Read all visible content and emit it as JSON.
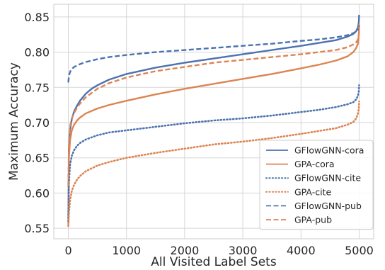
{
  "chart_data": {
    "type": "line",
    "xlabel": "All Visited Label Sets",
    "ylabel": "Maximum Accuracy",
    "xlim": [
      -250,
      5250
    ],
    "ylim": [
      0.535,
      0.868
    ],
    "xticks": [
      0,
      1000,
      2000,
      3000,
      4000,
      5000
    ],
    "xtick_labels": [
      "0",
      "1000",
      "2000",
      "3000",
      "4000",
      "5000"
    ],
    "yticks": [
      0.55,
      0.6,
      0.65,
      0.7,
      0.75,
      0.8,
      0.85
    ],
    "ytick_labels": [
      "0.55",
      "0.60",
      "0.65",
      "0.70",
      "0.75",
      "0.80",
      "0.85"
    ],
    "grid": true,
    "legend_position": "bottom-right",
    "series": [
      {
        "name": "GFlowGNN-cora",
        "color": "#4c72b0",
        "linestyle": "solid",
        "x": [
          0,
          10,
          30,
          60,
          100,
          150,
          200,
          300,
          400,
          500,
          700,
          1000,
          1500,
          2000,
          2500,
          3000,
          3500,
          4000,
          4300,
          4600,
          4800,
          4900,
          4950,
          4980,
          4995,
          5000
        ],
        "y": [
          0.565,
          0.66,
          0.69,
          0.705,
          0.716,
          0.724,
          0.731,
          0.741,
          0.748,
          0.753,
          0.761,
          0.769,
          0.778,
          0.785,
          0.791,
          0.797,
          0.803,
          0.809,
          0.813,
          0.817,
          0.822,
          0.826,
          0.83,
          0.835,
          0.843,
          0.853
        ]
      },
      {
        "name": "GPA-cora",
        "color": "#dd8452",
        "linestyle": "solid",
        "x": [
          0,
          10,
          30,
          60,
          100,
          150,
          200,
          300,
          500,
          700,
          1000,
          1500,
          2000,
          2500,
          3000,
          3500,
          4000,
          4300,
          4600,
          4800,
          4900,
          4950,
          4980,
          4995,
          5000
        ],
        "y": [
          0.555,
          0.65,
          0.675,
          0.689,
          0.697,
          0.703,
          0.707,
          0.713,
          0.72,
          0.725,
          0.731,
          0.74,
          0.748,
          0.755,
          0.762,
          0.769,
          0.777,
          0.782,
          0.788,
          0.794,
          0.8,
          0.806,
          0.812,
          0.825,
          0.84
        ]
      },
      {
        "name": "GFlowGNN-cite",
        "color": "#4c72b0",
        "linestyle": "dotted",
        "x": [
          0,
          10,
          30,
          60,
          100,
          150,
          200,
          300,
          500,
          700,
          1000,
          1500,
          2000,
          2500,
          3000,
          3500,
          4000,
          4300,
          4600,
          4800,
          4900,
          4950,
          4980,
          4995,
          5000
        ],
        "y": [
          0.56,
          0.615,
          0.64,
          0.653,
          0.661,
          0.667,
          0.671,
          0.676,
          0.682,
          0.686,
          0.689,
          0.694,
          0.699,
          0.703,
          0.706,
          0.71,
          0.715,
          0.718,
          0.722,
          0.726,
          0.729,
          0.733,
          0.738,
          0.745,
          0.753
        ]
      },
      {
        "name": "GPA-cite",
        "color": "#dd8452",
        "linestyle": "dotted",
        "x": [
          0,
          10,
          30,
          60,
          100,
          150,
          200,
          300,
          500,
          700,
          1000,
          1500,
          2000,
          2500,
          3000,
          3500,
          4000,
          4300,
          4600,
          4800,
          4900,
          4950,
          4980,
          4995,
          5000
        ],
        "y": [
          0.553,
          0.57,
          0.59,
          0.603,
          0.612,
          0.619,
          0.624,
          0.631,
          0.639,
          0.644,
          0.65,
          0.657,
          0.663,
          0.669,
          0.673,
          0.678,
          0.684,
          0.688,
          0.692,
          0.697,
          0.701,
          0.706,
          0.713,
          0.72,
          0.73
        ]
      },
      {
        "name": "GFlowGNN-pub",
        "color": "#4c72b0",
        "linestyle": "dashed",
        "x": [
          0,
          10,
          30,
          60,
          100,
          150,
          200,
          300,
          500,
          700,
          1000,
          1500,
          2000,
          2500,
          3000,
          3500,
          4000,
          4300,
          4600,
          4800,
          4900,
          4950,
          4980,
          4995,
          5000
        ],
        "y": [
          0.757,
          0.766,
          0.772,
          0.776,
          0.779,
          0.781,
          0.783,
          0.786,
          0.79,
          0.793,
          0.796,
          0.8,
          0.803,
          0.806,
          0.809,
          0.812,
          0.816,
          0.818,
          0.821,
          0.824,
          0.827,
          0.829,
          0.832,
          0.836,
          0.84
        ]
      },
      {
        "name": "GPA-pub",
        "color": "#dd8452",
        "linestyle": "dashed",
        "x": [
          0,
          10,
          30,
          60,
          100,
          150,
          200,
          300,
          500,
          700,
          1000,
          1500,
          2000,
          2500,
          3000,
          3500,
          4000,
          4300,
          4600,
          4800,
          4900,
          4950,
          4980,
          4995,
          5000
        ],
        "y": [
          0.61,
          0.67,
          0.695,
          0.706,
          0.714,
          0.721,
          0.727,
          0.736,
          0.748,
          0.756,
          0.764,
          0.773,
          0.779,
          0.785,
          0.789,
          0.793,
          0.797,
          0.8,
          0.803,
          0.807,
          0.811,
          0.814,
          0.818,
          0.826,
          0.836
        ]
      }
    ]
  }
}
